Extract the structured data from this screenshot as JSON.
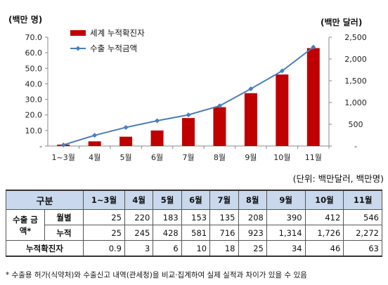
{
  "chart_data": {
    "type": "bar+line",
    "categories": [
      "1~3월",
      "4월",
      "5월",
      "6월",
      "7월",
      "8월",
      "9월",
      "10월",
      "11월"
    ],
    "series": [
      {
        "name": "세계 누적확진자",
        "type": "bar",
        "axis": "left",
        "values": [
          0.9,
          3,
          6,
          10,
          18,
          25,
          34,
          46,
          63
        ],
        "color": "#c00000"
      },
      {
        "name": "수출 누적금액",
        "type": "line",
        "axis": "right",
        "values": [
          25,
          245,
          428,
          581,
          716,
          923,
          1314,
          1726,
          2272
        ],
        "color": "#4a7ebb"
      }
    ],
    "left_axis": {
      "label": "(백만 명)",
      "range": [
        0,
        70
      ],
      "ticks": [
        "-",
        "10.0",
        "20.0",
        "30.0",
        "40.0",
        "50.0",
        "60.0",
        "70.0"
      ]
    },
    "right_axis": {
      "label": "(백만 달러)",
      "range": [
        0,
        2500
      ],
      "ticks": [
        "-",
        "500",
        "1,000",
        "1,500",
        "2,000",
        "2,500"
      ]
    },
    "legend_position": "top-left",
    "grid": false
  },
  "unit_note": "(단위: 백만달러, 백만명)",
  "table": {
    "header_label": "구분",
    "months": [
      "1~3월",
      "4월",
      "5월",
      "6월",
      "7월",
      "8월",
      "9월",
      "10월",
      "11월"
    ],
    "export_group_label": "수출 금액*",
    "rows": {
      "monthly": {
        "label": "월별",
        "values": [
          "25",
          "220",
          "183",
          "153",
          "135",
          "208",
          "390",
          "412",
          "546"
        ]
      },
      "cumulative": {
        "label": "누적",
        "values": [
          "25",
          "245",
          "428",
          "581",
          "716",
          "923",
          "1,314",
          "1,726",
          "2,272"
        ]
      },
      "confirmed": {
        "label": "누적확진자",
        "values": [
          "0.9",
          "3",
          "6",
          "10",
          "18",
          "25",
          "34",
          "46",
          "63"
        ]
      }
    }
  },
  "footnote": "* 수출용 허가(식약처)와 수출신고 내역(관세청)을 비교·집계하여 실제 실적과 차이가 있을 수 있음"
}
